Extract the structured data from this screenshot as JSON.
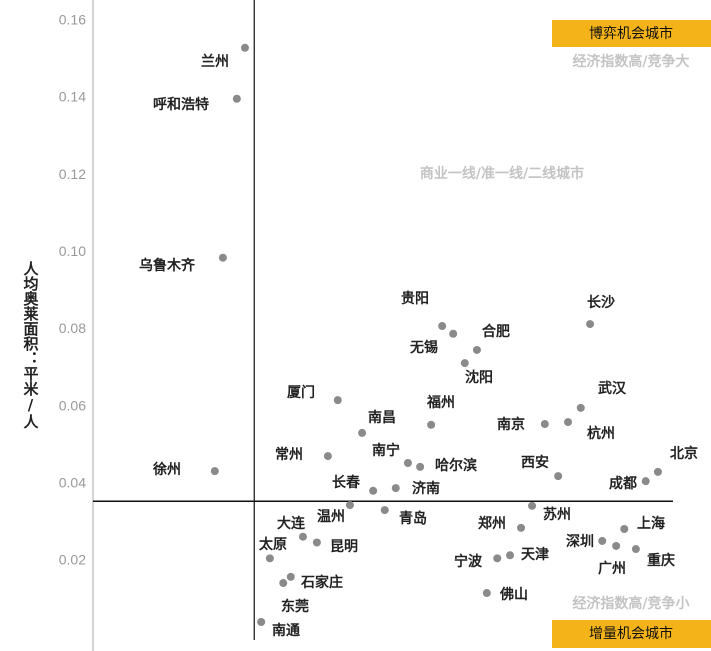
{
  "chart_data": {
    "type": "scatter",
    "y_label": "人均奥莱面积：平米/人",
    "ylim": [
      0,
      0.165
    ],
    "yticks": [
      0.02,
      0.04,
      0.06,
      0.08,
      0.1,
      0.12,
      0.14,
      0.16
    ],
    "ytick_labels": [
      "0.02",
      "0.04",
      "0.06",
      "0.08",
      "0.10",
      "0.12",
      "0.14",
      "0.16"
    ],
    "xlim": [
      0,
      100
    ],
    "vline": 27.8,
    "hline": 0.0355,
    "color": "#8a8a8a",
    "quadrant_top": "博弈机会城市",
    "quadrant_top_note": "经济指数高/竞争大",
    "middle_note": "商业一线/准一线/二线城市",
    "quadrant_bottom": "增量机会城市",
    "quadrant_bottom_note": "经济指数高/竞争小",
    "points": [
      {
        "label": "兰州",
        "x": 26.2,
        "y": 0.153
      },
      {
        "label": "呼和浩特",
        "x": 24.8,
        "y": 0.1398
      },
      {
        "label": "乌鲁木齐",
        "x": 22.4,
        "y": 0.0986
      },
      {
        "label": "徐州",
        "x": 21.0,
        "y": 0.0433
      },
      {
        "label": "贵阳",
        "x": 60.2,
        "y": 0.0809
      },
      {
        "label": "无锡",
        "x": 62.1,
        "y": 0.0789
      },
      {
        "label": "合肥",
        "x": 66.2,
        "y": 0.0747
      },
      {
        "label": "沈阳",
        "x": 64.1,
        "y": 0.0713
      },
      {
        "label": "长沙",
        "x": 85.7,
        "y": 0.0814
      },
      {
        "label": "厦门",
        "x": 42.2,
        "y": 0.0617
      },
      {
        "label": "武汉",
        "x": 84.1,
        "y": 0.0597
      },
      {
        "label": "福州",
        "x": 58.3,
        "y": 0.0553
      },
      {
        "label": "南京",
        "x": 77.9,
        "y": 0.0555
      },
      {
        "label": "杭州",
        "x": 81.9,
        "y": 0.056
      },
      {
        "label": "南昌",
        "x": 46.4,
        "y": 0.0532
      },
      {
        "label": "常州",
        "x": 40.5,
        "y": 0.0472
      },
      {
        "label": "南宁",
        "x": 54.3,
        "y": 0.0454
      },
      {
        "label": "哈尔滨",
        "x": 56.4,
        "y": 0.0444
      },
      {
        "label": "北京",
        "x": 97.4,
        "y": 0.0431
      },
      {
        "label": "成都",
        "x": 95.3,
        "y": 0.0407
      },
      {
        "label": "西安",
        "x": 80.2,
        "y": 0.042
      },
      {
        "label": "长春",
        "x": 48.3,
        "y": 0.0382
      },
      {
        "label": "济南",
        "x": 52.2,
        "y": 0.0389
      },
      {
        "label": "温州",
        "x": 44.3,
        "y": 0.0345
      },
      {
        "label": "青岛",
        "x": 50.3,
        "y": 0.0332
      },
      {
        "label": "苏州",
        "x": 75.7,
        "y": 0.0343
      },
      {
        "label": "郑州",
        "x": 73.8,
        "y": 0.0286
      },
      {
        "label": "大连",
        "x": 36.2,
        "y": 0.0263
      },
      {
        "label": "昆明",
        "x": 38.6,
        "y": 0.0248
      },
      {
        "label": "上海",
        "x": 91.6,
        "y": 0.0283
      },
      {
        "label": "深圳",
        "x": 87.8,
        "y": 0.0252
      },
      {
        "label": "广州",
        "x": 90.2,
        "y": 0.0239
      },
      {
        "label": "重庆",
        "x": 93.6,
        "y": 0.0231
      },
      {
        "label": "太原",
        "x": 30.5,
        "y": 0.0207
      },
      {
        "label": "天津",
        "x": 71.9,
        "y": 0.0215
      },
      {
        "label": "宁波",
        "x": 69.7,
        "y": 0.0207
      },
      {
        "label": "石家庄",
        "x": 34.1,
        "y": 0.0159
      },
      {
        "label": "东莞",
        "x": 32.8,
        "y": 0.0143
      },
      {
        "label": "南通",
        "x": 29.0,
        "y": 0.0042
      },
      {
        "label": "佛山",
        "x": 67.9,
        "y": 0.0117
      }
    ]
  }
}
